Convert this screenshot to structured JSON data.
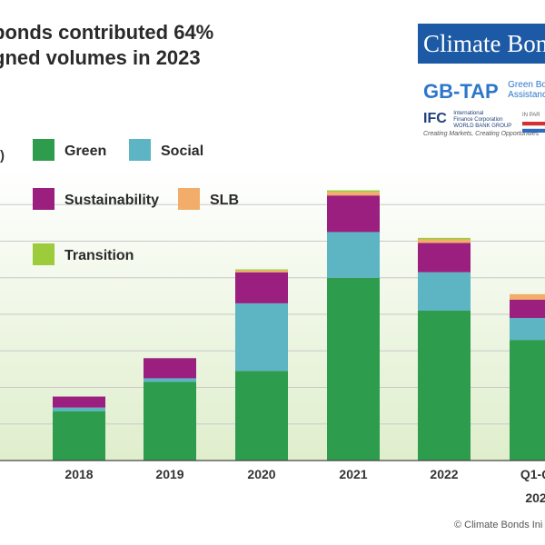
{
  "title": {
    "line1": "bonds contributed 64%",
    "line2": "gned volumes in 2023"
  },
  "ylabel_fragment": ")",
  "logos": {
    "cbi": "Climate Bonds",
    "gbtap": "GB-TAP",
    "gbtap_sub1": "Green Bo",
    "gbtap_sub2": "Assistanc",
    "ifc": "IFC",
    "ifc_sub1": "International",
    "ifc_sub2": "Finance Corporation",
    "ifc_sub3": "WORLD BANK GROUP",
    "ifc_tagline": "Creating Markets, Creating Opportunities",
    "inpart": "IN PAR",
    "flag_colors": [
      "#d62f2f",
      "#ffffff",
      "#2b6cc4"
    ]
  },
  "copyright": "© Climate Bonds Ini",
  "colors": {
    "Green": "#2e9c4d",
    "Social": "#5db4c2",
    "Sustainability": "#9b1f7f",
    "SLB": "#f2ad6a",
    "Transition": "#9ccb3b"
  },
  "chart_data": {
    "type": "bar",
    "stacked": true,
    "categories": [
      "2018",
      "2019",
      "2020",
      "2021",
      "2022",
      "Q1-Q"
    ],
    "category_line2": [
      "",
      "",
      "",
      "",
      "",
      "202"
    ],
    "series": [
      {
        "name": "Green",
        "values": [
          13.5,
          21.5,
          24.5,
          50,
          41,
          33
        ]
      },
      {
        "name": "Social",
        "values": [
          1,
          1,
          18.5,
          12.5,
          10.5,
          6
        ]
      },
      {
        "name": "Sustainability",
        "values": [
          3,
          5.5,
          8.5,
          10,
          8,
          5
        ]
      },
      {
        "name": "SLB",
        "values": [
          0,
          0,
          0.5,
          1,
          1,
          1.5
        ]
      },
      {
        "name": "Transition",
        "values": [
          0,
          0,
          0.3,
          0.4,
          0.4,
          0
        ]
      }
    ],
    "ylim": [
      0,
      80
    ],
    "ytick_step": 10,
    "grid": true,
    "legend": "top-left, inside plot"
  }
}
